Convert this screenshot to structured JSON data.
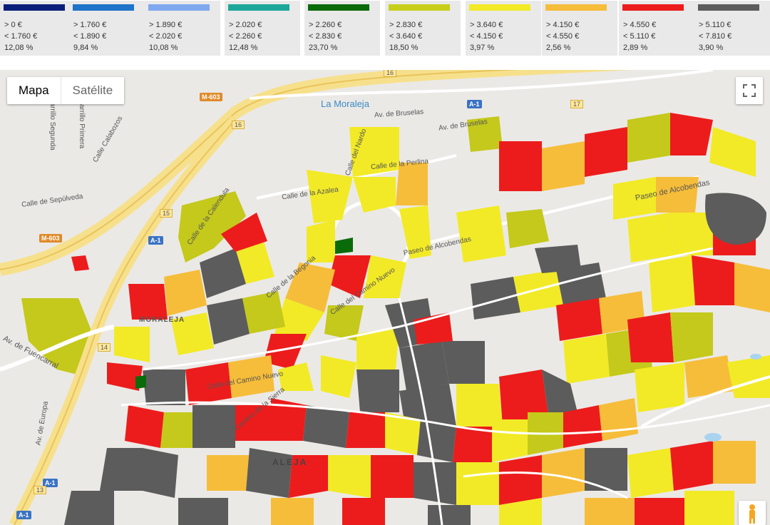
{
  "legend": [
    {
      "color": "#0b1f7a",
      "min": "> 0 €",
      "max": "< 1.760 €",
      "pct": "12,08 %"
    },
    {
      "color": "#1f73c8",
      "min": "> 1.760 €",
      "max": "< 1.890 €",
      "pct": "9,84 %"
    },
    {
      "color": "#7fa8ef",
      "min": "> 1.890 €",
      "max": "< 2.020 €",
      "pct": "10,08 %"
    },
    {
      "color": "#1ba89a",
      "min": "> 2.020 €",
      "max": "< 2.260 €",
      "pct": "12,48 %"
    },
    {
      "color": "#0a6b0a",
      "min": "> 2.260 €",
      "max": "< 2.830 €",
      "pct": "23,70 %"
    },
    {
      "color": "#c7cf1c",
      "min": "> 2.830 €",
      "max": "< 3.640 €",
      "pct": "18,50 %"
    },
    {
      "color": "#f2ea26",
      "min": "> 3.640 €",
      "max": "< 4.150 €",
      "pct": "3,97 %"
    },
    {
      "color": "#f6bd3a",
      "min": "> 4.150 €",
      "max": "< 4.550 €",
      "pct": "2,56 %"
    },
    {
      "color": "#ec1c1c",
      "min": "> 4.550 €",
      "max": "< 5.110 €",
      "pct": "2,89 %"
    },
    {
      "color": "#5c5c5c",
      "min": "> 5.110 €",
      "max": "< 7.810 €",
      "pct": "3,90 %"
    }
  ],
  "map": {
    "map_type": {
      "map_label": "Mapa",
      "satellite_label": "Satélite",
      "selected": "Mapa"
    },
    "poi": {
      "moraleja": "La Moraleja"
    },
    "streets": {
      "bruselas": "Av. de Bruselas",
      "bruselas2": "Av. de Bruselas",
      "azalea": "Calle de la Azalea",
      "alcobendas": "Paseo de Alcobendas",
      "alcobendas2": "Paseo de Alcobendas",
      "sepulveda": "Calle de Sepúlveda",
      "fuencarral": "Av. de Fuencarral",
      "europa": "Av. de Europa",
      "nardo": "Calle del Nardo",
      "perlina": "Calle de la Perlina",
      "camino_nuevo": "Calle del Camino Nuevo",
      "camino_nuevo2": "Calle del Camino Nuevo",
      "begonia": "Calle de la Begonia",
      "calabozos": "Calle Calabozos",
      "primera": "Carrillo Primera",
      "segunda": "Carrillo Segunda",
      "calendula": "Calle de la Calendula",
      "sierra": "Camino de la Sierra",
      "moraleja_area": "MORALEJA",
      "aleja": "ALEJA"
    },
    "road_labels": {
      "m603a": "M-603",
      "m603b": "M-603",
      "a1a": "A-1",
      "a1b": "A-1",
      "a1c": "A-1",
      "a1d": "A-1",
      "n16a": "16",
      "n16b": "16",
      "n17": "17",
      "n15": "15",
      "n14": "14",
      "n13": "13"
    }
  }
}
